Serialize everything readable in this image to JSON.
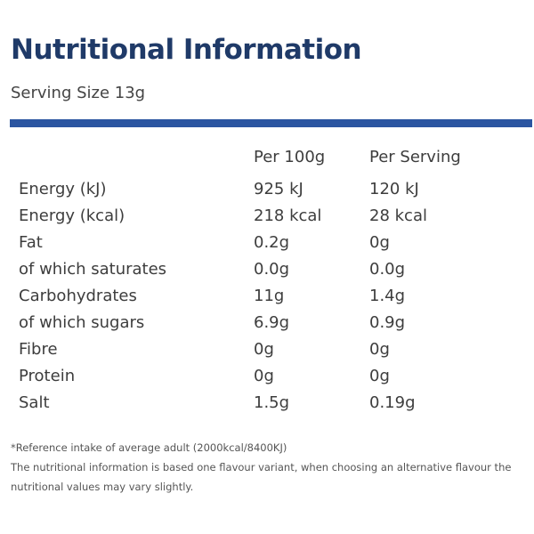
{
  "title": "Nutritional Information",
  "serving_size": "Serving Size 13g",
  "colors": {
    "title": "#1f3a68",
    "rule": "#2b55a1"
  },
  "table": {
    "headers": [
      "",
      "Per 100g",
      "Per Serving"
    ],
    "rows": [
      {
        "name": "Energy (kJ)",
        "per_100g": "925 kJ",
        "per_serving": "120 kJ"
      },
      {
        "name": "Energy (kcal)",
        "per_100g": "218 kcal",
        "per_serving": "28 kcal"
      },
      {
        "name": "Fat",
        "per_100g": "0.2g",
        "per_serving": "0g"
      },
      {
        "name": "of which saturates",
        "per_100g": "0.0g",
        "per_serving": "0.0g"
      },
      {
        "name": "Carbohydrates",
        "per_100g": "11g",
        "per_serving": "1.4g"
      },
      {
        "name": "of which sugars",
        "per_100g": "6.9g",
        "per_serving": "0.9g"
      },
      {
        "name": "Fibre",
        "per_100g": "0g",
        "per_serving": "0g"
      },
      {
        "name": "Protein",
        "per_100g": "0g",
        "per_serving": "0g"
      },
      {
        "name": "Salt",
        "per_100g": "1.5g",
        "per_serving": "0.19g"
      }
    ]
  },
  "footnotes": {
    "reference": "*Reference intake of average adult (2000kcal/8400KJ)",
    "variant": "The nutritional information is based one flavour variant, when choosing an alternative flavour the nutritional values may vary slightly."
  }
}
